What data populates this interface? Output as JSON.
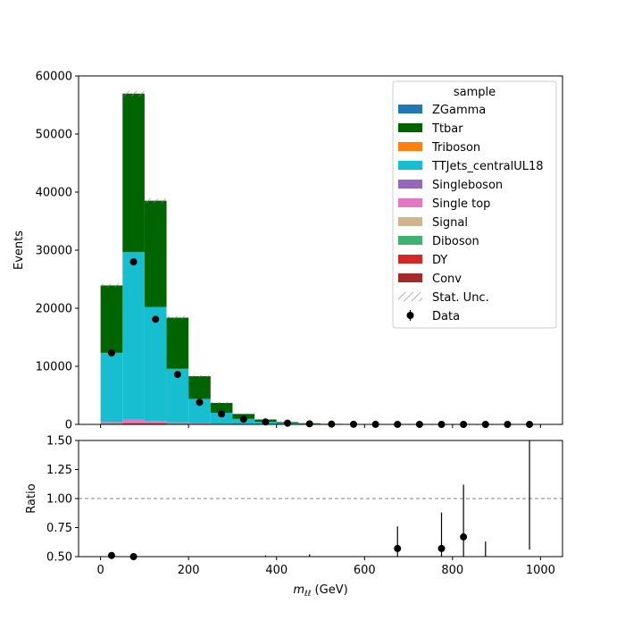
{
  "chart_data": [
    {
      "type": "bar",
      "stacked": true,
      "ylabel": "Events",
      "xlim": [
        -50,
        1050
      ],
      "ylim": [
        0,
        60000
      ],
      "yticks": [
        0,
        10000,
        20000,
        30000,
        40000,
        50000,
        60000
      ],
      "ytick_labels": [
        "0",
        "10000",
        "20000",
        "30000",
        "40000",
        "50000",
        "60000"
      ],
      "bin_edges": [
        0,
        50,
        100,
        150,
        200,
        250,
        300,
        350,
        400,
        450,
        500,
        550,
        600,
        650,
        700,
        750,
        800,
        850,
        900,
        950,
        1000
      ],
      "series": [
        {
          "name": "Conv",
          "color": "#a52a2a",
          "values": [
            40,
            80,
            60,
            40,
            20,
            10,
            5,
            2,
            1,
            0,
            0,
            0,
            0,
            0,
            0,
            0,
            0,
            0,
            0,
            0
          ]
        },
        {
          "name": "DY",
          "color": "#d62728",
          "values": [
            60,
            120,
            90,
            60,
            30,
            15,
            8,
            3,
            1,
            0,
            0,
            0,
            0,
            0,
            0,
            0,
            0,
            0,
            0,
            0
          ]
        },
        {
          "name": "Diboson",
          "color": "#3cb371",
          "values": [
            50,
            100,
            80,
            50,
            30,
            15,
            8,
            4,
            2,
            1,
            0,
            0,
            0,
            0,
            0,
            0,
            0,
            0,
            0,
            0
          ]
        },
        {
          "name": "Signal",
          "color": "#d2b48c",
          "values": [
            0,
            0,
            0,
            0,
            0,
            0,
            0,
            0,
            0,
            0,
            0,
            0,
            0,
            0,
            0,
            0,
            0,
            0,
            0,
            0
          ]
        },
        {
          "name": "Single top",
          "color": "#e377c2",
          "values": [
            250,
            500,
            350,
            200,
            100,
            50,
            25,
            12,
            6,
            3,
            1,
            1,
            0,
            0,
            0,
            0,
            0,
            0,
            0,
            0
          ]
        },
        {
          "name": "Singleboson",
          "color": "#9467bd",
          "values": [
            30,
            60,
            40,
            30,
            15,
            8,
            4,
            2,
            1,
            0,
            0,
            0,
            0,
            0,
            0,
            0,
            0,
            0,
            0,
            0
          ]
        },
        {
          "name": "TTJets_centralUL18",
          "color": "#17becf",
          "values": [
            11900,
            28800,
            19600,
            9200,
            4200,
            1900,
            900,
            420,
            200,
            100,
            50,
            25,
            12,
            6,
            3,
            2,
            1,
            1,
            0,
            0
          ]
        },
        {
          "name": "Triboson",
          "color": "#ff7f0e",
          "values": [
            0,
            0,
            0,
            0,
            0,
            0,
            0,
            0,
            0,
            0,
            0,
            0,
            0,
            0,
            0,
            0,
            0,
            0,
            0,
            0
          ]
        },
        {
          "name": "Ttbar",
          "color": "#006400",
          "values": [
            11600,
            27300,
            18300,
            8800,
            3900,
            1700,
            850,
            400,
            190,
            95,
            45,
            22,
            10,
            5,
            2,
            1,
            1,
            0,
            0,
            0
          ]
        },
        {
          "name": "ZGamma",
          "color": "#1f77b4",
          "values": [
            0,
            0,
            0,
            0,
            0,
            0,
            0,
            0,
            0,
            0,
            0,
            0,
            0,
            0,
            0,
            0,
            0,
            0,
            0,
            0
          ]
        }
      ],
      "data_points": {
        "name": "Data",
        "x": [
          25,
          75,
          125,
          175,
          225,
          275,
          325,
          375,
          425,
          475,
          525,
          575,
          625,
          675,
          725,
          775,
          825,
          875,
          925,
          975
        ],
        "y": [
          12300,
          28000,
          18100,
          8600,
          3800,
          1800,
          900,
          420,
          210,
          100,
          50,
          25,
          12,
          7,
          3,
          2,
          1,
          1,
          0,
          0
        ]
      },
      "legend": {
        "title": "sample",
        "placement": "top-right",
        "entries": [
          {
            "label": "ZGamma",
            "color": "#1f77b4",
            "kind": "patch"
          },
          {
            "label": "Ttbar",
            "color": "#006400",
            "kind": "patch"
          },
          {
            "label": "Triboson",
            "color": "#ff7f0e",
            "kind": "patch"
          },
          {
            "label": "TTJets_centralUL18",
            "color": "#17becf",
            "kind": "patch"
          },
          {
            "label": "Singleboson",
            "color": "#9467bd",
            "kind": "patch"
          },
          {
            "label": "Single top",
            "color": "#e377c2",
            "kind": "patch"
          },
          {
            "label": "Signal",
            "color": "#d2b48c",
            "kind": "patch"
          },
          {
            "label": "Diboson",
            "color": "#3cb371",
            "kind": "patch"
          },
          {
            "label": "DY",
            "color": "#d62728",
            "kind": "patch"
          },
          {
            "label": "Conv",
            "color": "#a52a2a",
            "kind": "patch"
          },
          {
            "label": "Stat. Unc.",
            "color": "#888888",
            "kind": "hatch"
          },
          {
            "label": "Data",
            "color": "#000000",
            "kind": "marker"
          }
        ]
      }
    },
    {
      "type": "scatter",
      "ylabel": "Ratio",
      "xlabel_main": "m",
      "xlabel_sub": "ℓℓ",
      "xlabel_unit": " (GeV)",
      "xlim": [
        -50,
        1050
      ],
      "ylim": [
        0.5,
        1.5
      ],
      "xticks": [
        0,
        200,
        400,
        600,
        800,
        1000
      ],
      "xtick_labels": [
        "0",
        "200",
        "400",
        "600",
        "800",
        "1000"
      ],
      "yticks": [
        0.5,
        0.75,
        1.0,
        1.25,
        1.5
      ],
      "ytick_labels": [
        "0.50",
        "0.75",
        "1.00",
        "1.25",
        "1.50"
      ],
      "reference_line": 1.0,
      "points": [
        {
          "x": 25,
          "y": 0.51
        },
        {
          "x": 75,
          "y": 0.5
        },
        {
          "x": 675,
          "y": 0.57,
          "err_lo": 0.5,
          "err_hi": 0.76
        },
        {
          "x": 775,
          "y": 0.57,
          "err_lo": 0.5,
          "err_hi": 0.88
        },
        {
          "x": 825,
          "y": 0.67,
          "err_lo": 0.5,
          "err_hi": 1.12
        }
      ],
      "error_bars_only": [
        {
          "x": 375,
          "lo": 0.5,
          "hi": 0.51
        },
        {
          "x": 475,
          "lo": 0.5,
          "hi": 0.52
        },
        {
          "x": 875,
          "lo": 0.5,
          "hi": 0.63
        },
        {
          "x": 975,
          "lo": 0.56,
          "hi": 1.5
        }
      ]
    }
  ]
}
